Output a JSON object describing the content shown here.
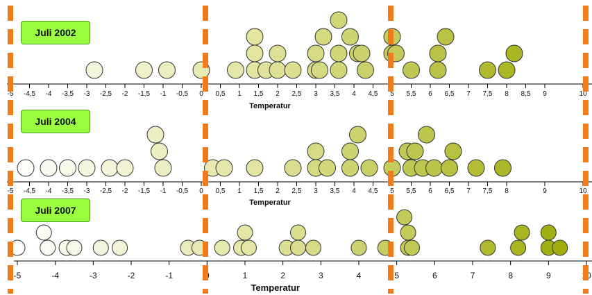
{
  "chart_data": [
    {
      "type": "scatter",
      "title": "Juli 2002",
      "xlabel": "Temperatur",
      "ylabel": "",
      "xlim": [
        -5,
        10
      ],
      "ticks": [
        "-5",
        "-4,5",
        "-4",
        "-3,5",
        "-3",
        "-2,5",
        "-2",
        "-1,5",
        "-1",
        "-0,5",
        "0",
        "0,5",
        "1",
        "1,5",
        "2",
        "2,5",
        "3",
        "3,5",
        "4",
        "4,5",
        "5",
        "5,5",
        "6",
        "6,5",
        "7",
        "7,5",
        "8",
        "8,5",
        "9",
        "10"
      ],
      "points": [
        {
          "x": -2.8,
          "y": 0
        },
        {
          "x": -1.5,
          "y": 0
        },
        {
          "x": -0.9,
          "y": 0
        },
        {
          "x": 0,
          "y": 0
        },
        {
          "x": 0.9,
          "y": 0
        },
        {
          "x": 1.4,
          "y": 0
        },
        {
          "x": 1.4,
          "y": 1
        },
        {
          "x": 1.4,
          "y": 2
        },
        {
          "x": 1.7,
          "y": 0
        },
        {
          "x": 2,
          "y": 0
        },
        {
          "x": 2,
          "y": 1
        },
        {
          "x": 2.4,
          "y": 0
        },
        {
          "x": 3,
          "y": 0
        },
        {
          "x": 3,
          "y": 1
        },
        {
          "x": 3.1,
          "y": 0
        },
        {
          "x": 3.2,
          "y": 2
        },
        {
          "x": 3.6,
          "y": 0
        },
        {
          "x": 3.6,
          "y": 1
        },
        {
          "x": 3.6,
          "y": 3
        },
        {
          "x": 3.9,
          "y": 2
        },
        {
          "x": 4.1,
          "y": 1
        },
        {
          "x": 4.2,
          "y": 1
        },
        {
          "x": 4.3,
          "y": 0
        },
        {
          "x": 5,
          "y": 1
        },
        {
          "x": 5,
          "y": 2
        },
        {
          "x": 5.1,
          "y": 1
        },
        {
          "x": 5.5,
          "y": 0
        },
        {
          "x": 6.2,
          "y": 0
        },
        {
          "x": 6.2,
          "y": 1
        },
        {
          "x": 6.4,
          "y": 2
        },
        {
          "x": 7.5,
          "y": 0
        },
        {
          "x": 8,
          "y": 0
        },
        {
          "x": 8.2,
          "y": 1
        }
      ]
    },
    {
      "type": "scatter",
      "title": "Juli 2004",
      "xlabel": "Temperatur",
      "ylabel": "",
      "xlim": [
        -5,
        10
      ],
      "ticks": [
        "-5",
        "-4,5",
        "-4",
        "-3,5",
        "-3",
        "-2,5",
        "-2",
        "-1,5",
        "-1",
        "-0,5",
        "0",
        "0,5",
        "1",
        "1,5",
        "2",
        "2,5",
        "3",
        "3,5",
        "4",
        "4,5",
        "5",
        "5,5",
        "6",
        "6,5",
        "7",
        "7,5",
        "8",
        "9",
        "10"
      ],
      "points": [
        {
          "x": -4.6,
          "y": 0
        },
        {
          "x": -4,
          "y": 0
        },
        {
          "x": -3.5,
          "y": 0
        },
        {
          "x": -3,
          "y": 0
        },
        {
          "x": -2.4,
          "y": 0
        },
        {
          "x": -2,
          "y": 0
        },
        {
          "x": -1,
          "y": 0
        },
        {
          "x": -1.1,
          "y": 1
        },
        {
          "x": -1.2,
          "y": 2
        },
        {
          "x": 0.3,
          "y": 0
        },
        {
          "x": 0.6,
          "y": 0
        },
        {
          "x": 1.4,
          "y": 0
        },
        {
          "x": 2.4,
          "y": 0
        },
        {
          "x": 3,
          "y": 0
        },
        {
          "x": 3,
          "y": 1
        },
        {
          "x": 3.3,
          "y": 0
        },
        {
          "x": 3.9,
          "y": 0
        },
        {
          "x": 3.9,
          "y": 1
        },
        {
          "x": 4.1,
          "y": 2
        },
        {
          "x": 4.4,
          "y": 0
        },
        {
          "x": 5,
          "y": 0
        },
        {
          "x": 5.5,
          "y": 0
        },
        {
          "x": 5.4,
          "y": 1
        },
        {
          "x": 5.6,
          "y": 1
        },
        {
          "x": 5.8,
          "y": 0
        },
        {
          "x": 5.9,
          "y": 2
        },
        {
          "x": 6.1,
          "y": 0
        },
        {
          "x": 6.5,
          "y": 0
        },
        {
          "x": 6.6,
          "y": 1
        },
        {
          "x": 7.2,
          "y": 0
        },
        {
          "x": 7.9,
          "y": 0
        }
      ]
    },
    {
      "type": "scatter",
      "title": "Juli 2007",
      "xlabel": "Temperatur",
      "ylabel": "",
      "xlim": [
        -5,
        10
      ],
      "ticks": [
        "-5",
        "-4",
        "-3",
        "-2",
        "-1",
        "0",
        "1",
        "2",
        "3",
        "4",
        "5",
        "6",
        "7",
        "8",
        "9",
        "10"
      ],
      "points": [
        {
          "x": -5,
          "y": 0
        },
        {
          "x": -4.3,
          "y": 1
        },
        {
          "x": -4.2,
          "y": 0
        },
        {
          "x": -3.7,
          "y": 0
        },
        {
          "x": -3.5,
          "y": 0
        },
        {
          "x": -2.8,
          "y": 0
        },
        {
          "x": -2.3,
          "y": 0
        },
        {
          "x": -0.5,
          "y": 0
        },
        {
          "x": -0.2,
          "y": 0
        },
        {
          "x": 0.4,
          "y": 0
        },
        {
          "x": 0.9,
          "y": 0
        },
        {
          "x": 1,
          "y": 1
        },
        {
          "x": 1.1,
          "y": 0
        },
        {
          "x": 2.1,
          "y": 0
        },
        {
          "x": 2.4,
          "y": 0
        },
        {
          "x": 2.4,
          "y": 1
        },
        {
          "x": 2.8,
          "y": 0
        },
        {
          "x": 4,
          "y": 0
        },
        {
          "x": 4.7,
          "y": 0
        },
        {
          "x": 5.3,
          "y": 0
        },
        {
          "x": 5.3,
          "y": 1
        },
        {
          "x": 5.4,
          "y": 0
        },
        {
          "x": 5.2,
          "y": 2
        },
        {
          "x": 7.4,
          "y": 0
        },
        {
          "x": 8.2,
          "y": 0
        },
        {
          "x": 8.3,
          "y": 1
        },
        {
          "x": 9,
          "y": 0
        },
        {
          "x": 9,
          "y": 1
        },
        {
          "x": 9.3,
          "y": 0
        }
      ]
    }
  ],
  "colors": {
    "dashed_marker": "#f07c1c",
    "badge_fill": "#9afd3f",
    "point_cold": "#ffffff",
    "point_mid": "#e0e39a",
    "point_hot": "#9aa800",
    "axis": "#000000"
  },
  "reference_lines": [
    -5,
    0,
    5,
    10
  ]
}
